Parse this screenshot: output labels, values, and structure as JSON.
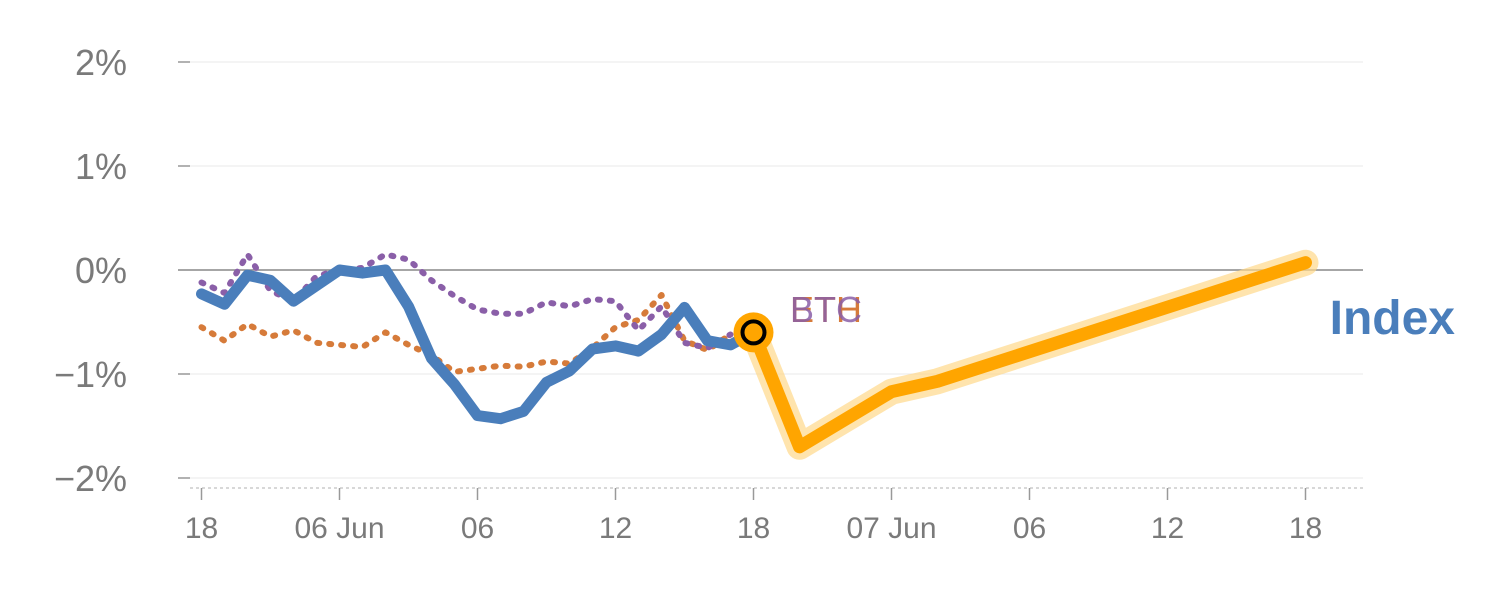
{
  "chart_data": {
    "type": "line",
    "y_ticks": [
      "2%",
      "1%",
      "0%",
      "−1%",
      "−2%"
    ],
    "y_tick_values": [
      2,
      1,
      0,
      -1,
      -2
    ],
    "ylim": [
      -2.1,
      2.1
    ],
    "x_tick_labels": [
      "18",
      "06 Jun",
      "06",
      "12",
      "18",
      "07 Jun",
      "06",
      "12",
      "18"
    ],
    "x_tick_positions": [
      0,
      6,
      12,
      18,
      24,
      30,
      36,
      42,
      48
    ],
    "xlim": [
      -0.5,
      50.5
    ],
    "grid": true,
    "zero_line": true,
    "colors": {
      "index": "#4a7ebb",
      "forecast": "#ffa500",
      "eth": "#d67b3a",
      "btc": "#8a5fa8",
      "grid": "#e8e8e8",
      "zero": "#888888",
      "tick_text": "#7a7a7a"
    },
    "series": [
      {
        "name": "ETH",
        "style": "dotted",
        "color": "#d67b3a",
        "x": [
          0,
          1,
          2,
          3,
          4,
          5,
          6,
          7,
          8,
          9,
          10,
          11,
          12,
          13,
          14,
          15,
          16,
          17,
          18,
          19,
          20,
          21,
          22,
          23
        ],
        "values": [
          -0.55,
          -0.68,
          -0.52,
          -0.64,
          -0.58,
          -0.7,
          -0.72,
          -0.74,
          -0.6,
          -0.72,
          -0.82,
          -0.98,
          -0.95,
          -0.92,
          -0.93,
          -0.88,
          -0.9,
          -0.75,
          -0.55,
          -0.48,
          -0.24,
          -0.68,
          -0.77,
          -0.62
        ]
      },
      {
        "name": "BTC",
        "style": "dotted",
        "color": "#8a5fa8",
        "x": [
          0,
          1,
          2,
          3,
          4,
          5,
          6,
          7,
          8,
          9,
          10,
          11,
          12,
          13,
          14,
          15,
          16,
          17,
          18,
          19,
          20,
          21,
          22,
          23
        ],
        "values": [
          -0.12,
          -0.22,
          0.15,
          -0.2,
          -0.3,
          -0.06,
          0.0,
          0.02,
          0.15,
          0.1,
          -0.1,
          -0.25,
          -0.38,
          -0.42,
          -0.42,
          -0.31,
          -0.35,
          -0.28,
          -0.3,
          -0.58,
          -0.35,
          -0.7,
          -0.75,
          -0.62
        ]
      },
      {
        "name": "Index",
        "style": "solid",
        "color": "#4a7ebb",
        "x": [
          0,
          1,
          2,
          3,
          4,
          5,
          6,
          7,
          8,
          9,
          10,
          11,
          12,
          13,
          14,
          15,
          16,
          17,
          18,
          19,
          20,
          21,
          22,
          23,
          24
        ],
        "values": [
          -0.23,
          -0.33,
          -0.05,
          -0.1,
          -0.3,
          -0.15,
          0.0,
          -0.03,
          0.0,
          -0.35,
          -0.85,
          -1.1,
          -1.4,
          -1.43,
          -1.36,
          -1.08,
          -0.97,
          -0.76,
          -0.73,
          -0.78,
          -0.62,
          -0.36,
          -0.68,
          -0.72,
          -0.6
        ]
      },
      {
        "name": "",
        "style": "forecast",
        "color": "#ffa500",
        "x": [
          24,
          26,
          30,
          32,
          48
        ],
        "values": [
          -0.6,
          -1.7,
          -1.17,
          -1.07,
          0.07
        ]
      }
    ],
    "labels": {
      "eth": "ETH",
      "btc": "BTC",
      "index": "Index"
    }
  }
}
